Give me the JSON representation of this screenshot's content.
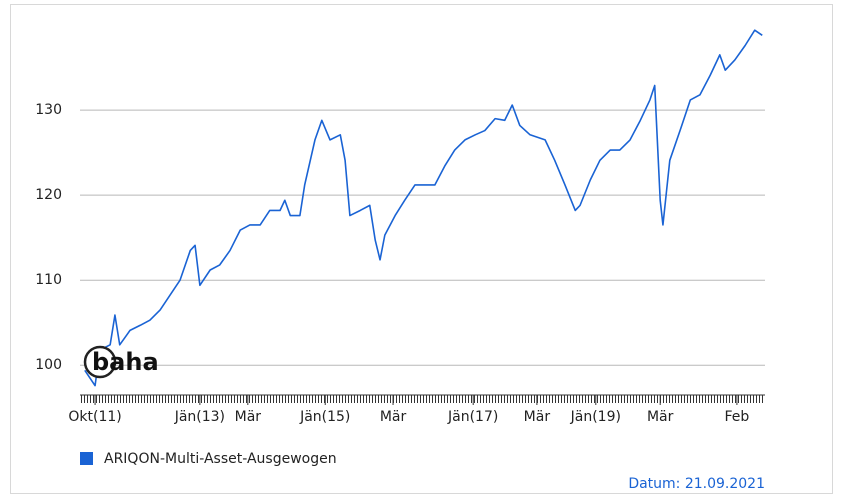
{
  "chart_data": {
    "type": "line",
    "logo": "baha",
    "footer": "Datum: 21.09.2021",
    "x": [
      0.7,
      2.2,
      2.9,
      4.4,
      5.1,
      5.8,
      7.3,
      8.8,
      10.2,
      11.7,
      13.1,
      14.6,
      16.1,
      16.8,
      17.5,
      19.0,
      20.4,
      21.9,
      23.4,
      24.8,
      26.3,
      27.7,
      29.2,
      29.9,
      30.7,
      32.1,
      32.8,
      34.3,
      35.3,
      36.5,
      38.0,
      38.7,
      39.4,
      40.9,
      42.3,
      43.1,
      43.8,
      44.5,
      46.0,
      47.4,
      48.9,
      50.4,
      51.8,
      53.3,
      54.7,
      56.2,
      57.7,
      59.1,
      60.6,
      62.0,
      63.1,
      64.2,
      65.7,
      67.9,
      69.3,
      70.8,
      72.3,
      73.0,
      74.5,
      75.9,
      77.4,
      78.8,
      80.3,
      81.8,
      83.2,
      83.9,
      84.7,
      85.1,
      86.1,
      87.6,
      89.1,
      90.5,
      92.0,
      93.4,
      94.2,
      95.6,
      97.1,
      98.5,
      99.6
    ],
    "series": [
      {
        "name": "ARIQON-Multi-Asset-Ausgewogen",
        "color": "#1a63d4",
        "values": [
          99.4,
          97.6,
          101.8,
          102.4,
          105.9,
          102.4,
          104.1,
          104.7,
          105.3,
          106.5,
          108.2,
          110,
          113.5,
          114.1,
          109.4,
          111.2,
          111.8,
          113.5,
          115.9,
          116.5,
          116.5,
          118.2,
          118.2,
          119.4,
          117.6,
          117.6,
          121.2,
          126.5,
          128.8,
          126.5,
          127.1,
          124.1,
          117.6,
          118.2,
          118.8,
          114.7,
          112.4,
          115.3,
          117.6,
          119.4,
          121.2,
          121.2,
          121.2,
          123.5,
          125.3,
          126.5,
          127.1,
          127.6,
          129,
          128.8,
          130.6,
          128.2,
          127.1,
          126.5,
          124.1,
          121.2,
          118.2,
          118.8,
          121.8,
          124.1,
          125.3,
          125.3,
          126.5,
          128.8,
          131.2,
          132.9,
          119.4,
          116.5,
          124.1,
          127.6,
          131.2,
          131.8,
          134.1,
          136.5,
          134.7,
          135.9,
          137.6,
          139.4,
          138.8
        ]
      }
    ],
    "xlim": [
      0,
      100
    ],
    "xticks": [
      {
        "value": 2.2,
        "label": "Okt(11)"
      },
      {
        "value": 17.5,
        "label": "Jän(13)"
      },
      {
        "value": 24.5,
        "label": "Mär"
      },
      {
        "value": 35.8,
        "label": "Jän(15)"
      },
      {
        "value": 45.7,
        "label": "Mär"
      },
      {
        "value": 57.4,
        "label": "Jän(17)"
      },
      {
        "value": 66.7,
        "label": "Mär"
      },
      {
        "value": 75.3,
        "label": "Jän(19)"
      },
      {
        "value": 84.7,
        "label": "Mär"
      },
      {
        "value": 95.9,
        "label": "Feb"
      }
    ],
    "ylim": [
      96.5,
      140.6
    ],
    "yticks": [
      100,
      110,
      120,
      130
    ],
    "grid": true
  }
}
